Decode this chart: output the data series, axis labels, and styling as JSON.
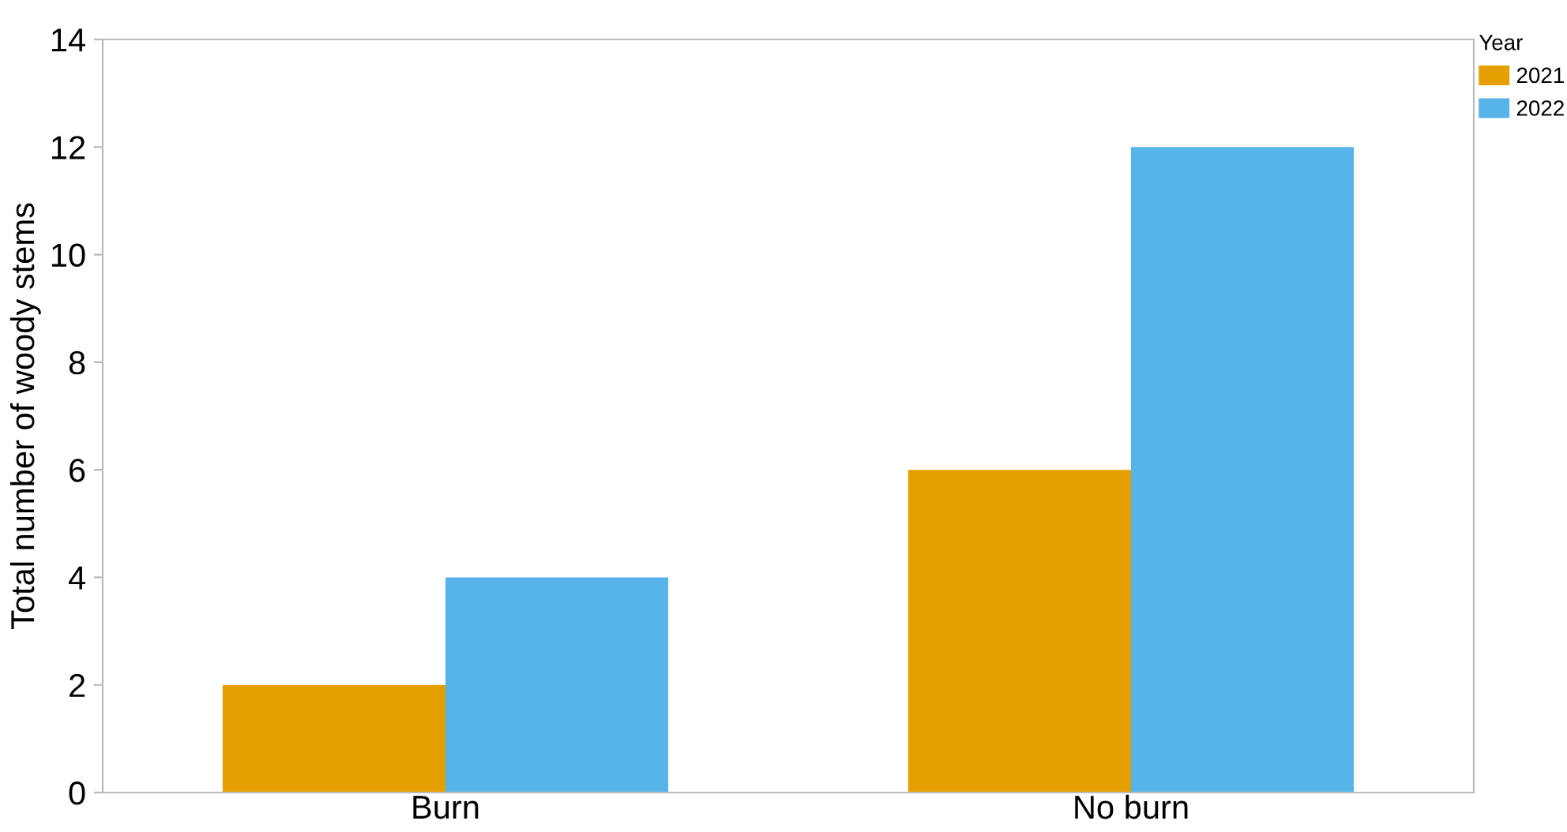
{
  "chart_data": {
    "type": "bar",
    "ylabel": "Total number of woody stems",
    "legend_title": "Year",
    "categories": [
      "Burn",
      "No burn"
    ],
    "series": [
      {
        "name": "2021",
        "color": "#e69f00",
        "values": [
          2,
          6
        ]
      },
      {
        "name": "2022",
        "color": "#56b4e9",
        "values": [
          4,
          12
        ]
      }
    ],
    "ylim": [
      0,
      14
    ],
    "yticks": [
      0,
      2,
      4,
      6,
      8,
      10,
      12,
      14
    ],
    "grid": false,
    "legend": "top right"
  }
}
